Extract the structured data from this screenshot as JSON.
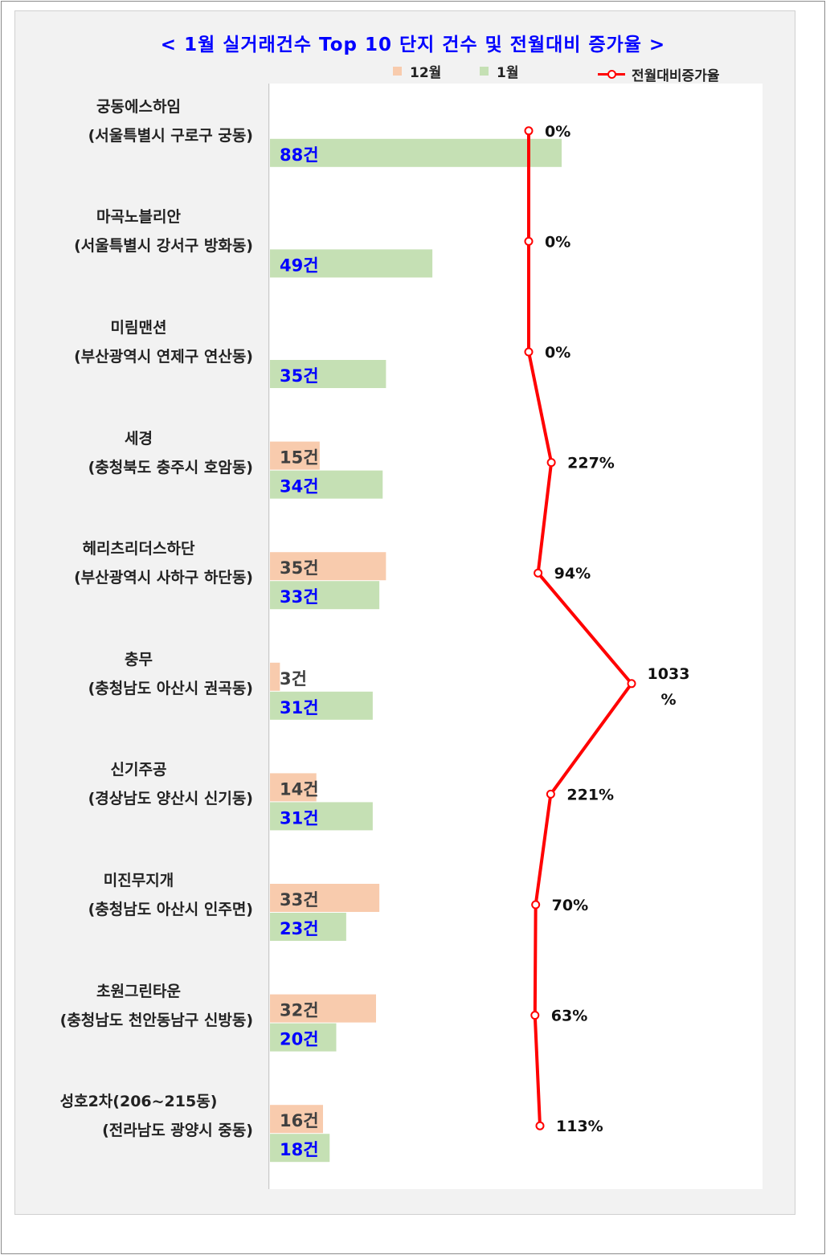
{
  "title": "< 1월 실거래건수 Top 10 단지 건수 및 전월대비 증가율 >",
  "legend": {
    "dec": "12월",
    "jan": "1월",
    "rate": "전월대비증가율"
  },
  "colors": {
    "dec": "#f8cbad",
    "jan": "#c5e0b4",
    "line": "#ff0000",
    "title": "#0000ff",
    "jan_label": "#0000ff",
    "dec_label": "#404040"
  },
  "chart_data": {
    "type": "bar",
    "orientation": "horizontal",
    "categories": [
      {
        "name": "궁동에스하임",
        "location": "(서울특별시 구로구 궁동)"
      },
      {
        "name": "마곡노블리안",
        "location": "(서울특별시 강서구 방화동)"
      },
      {
        "name": "미림맨션",
        "location": "(부산광역시 연제구 연산동)"
      },
      {
        "name": "세경",
        "location": "(충청북도 충주시 호암동)"
      },
      {
        "name": "헤리츠리더스하단",
        "location": "(부산광역시 사하구 하단동)"
      },
      {
        "name": "충무",
        "location": "(충청남도 아산시 권곡동)"
      },
      {
        "name": "신기주공",
        "location": "(경상남도 양산시 신기동)"
      },
      {
        "name": "미진무지개",
        "location": "(충청남도 아산시 인주면)"
      },
      {
        "name": "초원그린타운",
        "location": "(충청남도 천안동남구 신방동)"
      },
      {
        "name": "성호2차(206~215동)",
        "location": "(전라남도 광양시 중동)"
      }
    ],
    "series": [
      {
        "name": "12월",
        "values": [
          0,
          0,
          0,
          15,
          35,
          3,
          14,
          33,
          32,
          16
        ]
      },
      {
        "name": "1월",
        "values": [
          88,
          49,
          35,
          34,
          33,
          31,
          31,
          23,
          20,
          18
        ]
      },
      {
        "name": "전월대비증가율",
        "type": "line",
        "values": [
          0,
          0,
          0,
          227,
          94,
          1033,
          221,
          70,
          63,
          113
        ]
      }
    ],
    "dec_labels": [
      "",
      "",
      "",
      "15건",
      "35건",
      "3건",
      "14건",
      "33건",
      "32건",
      "16건"
    ],
    "jan_labels": [
      "88건",
      "49건",
      "35건",
      "34건",
      "33건",
      "31건",
      "31건",
      "23건",
      "20건",
      "18건"
    ],
    "rate_labels": [
      "0%",
      "0%",
      "0%",
      "227%",
      "94%",
      "1033\n%",
      "221%",
      "70%",
      "63%",
      "113%"
    ],
    "unit": "건",
    "grid": false,
    "legend_position": "top"
  }
}
